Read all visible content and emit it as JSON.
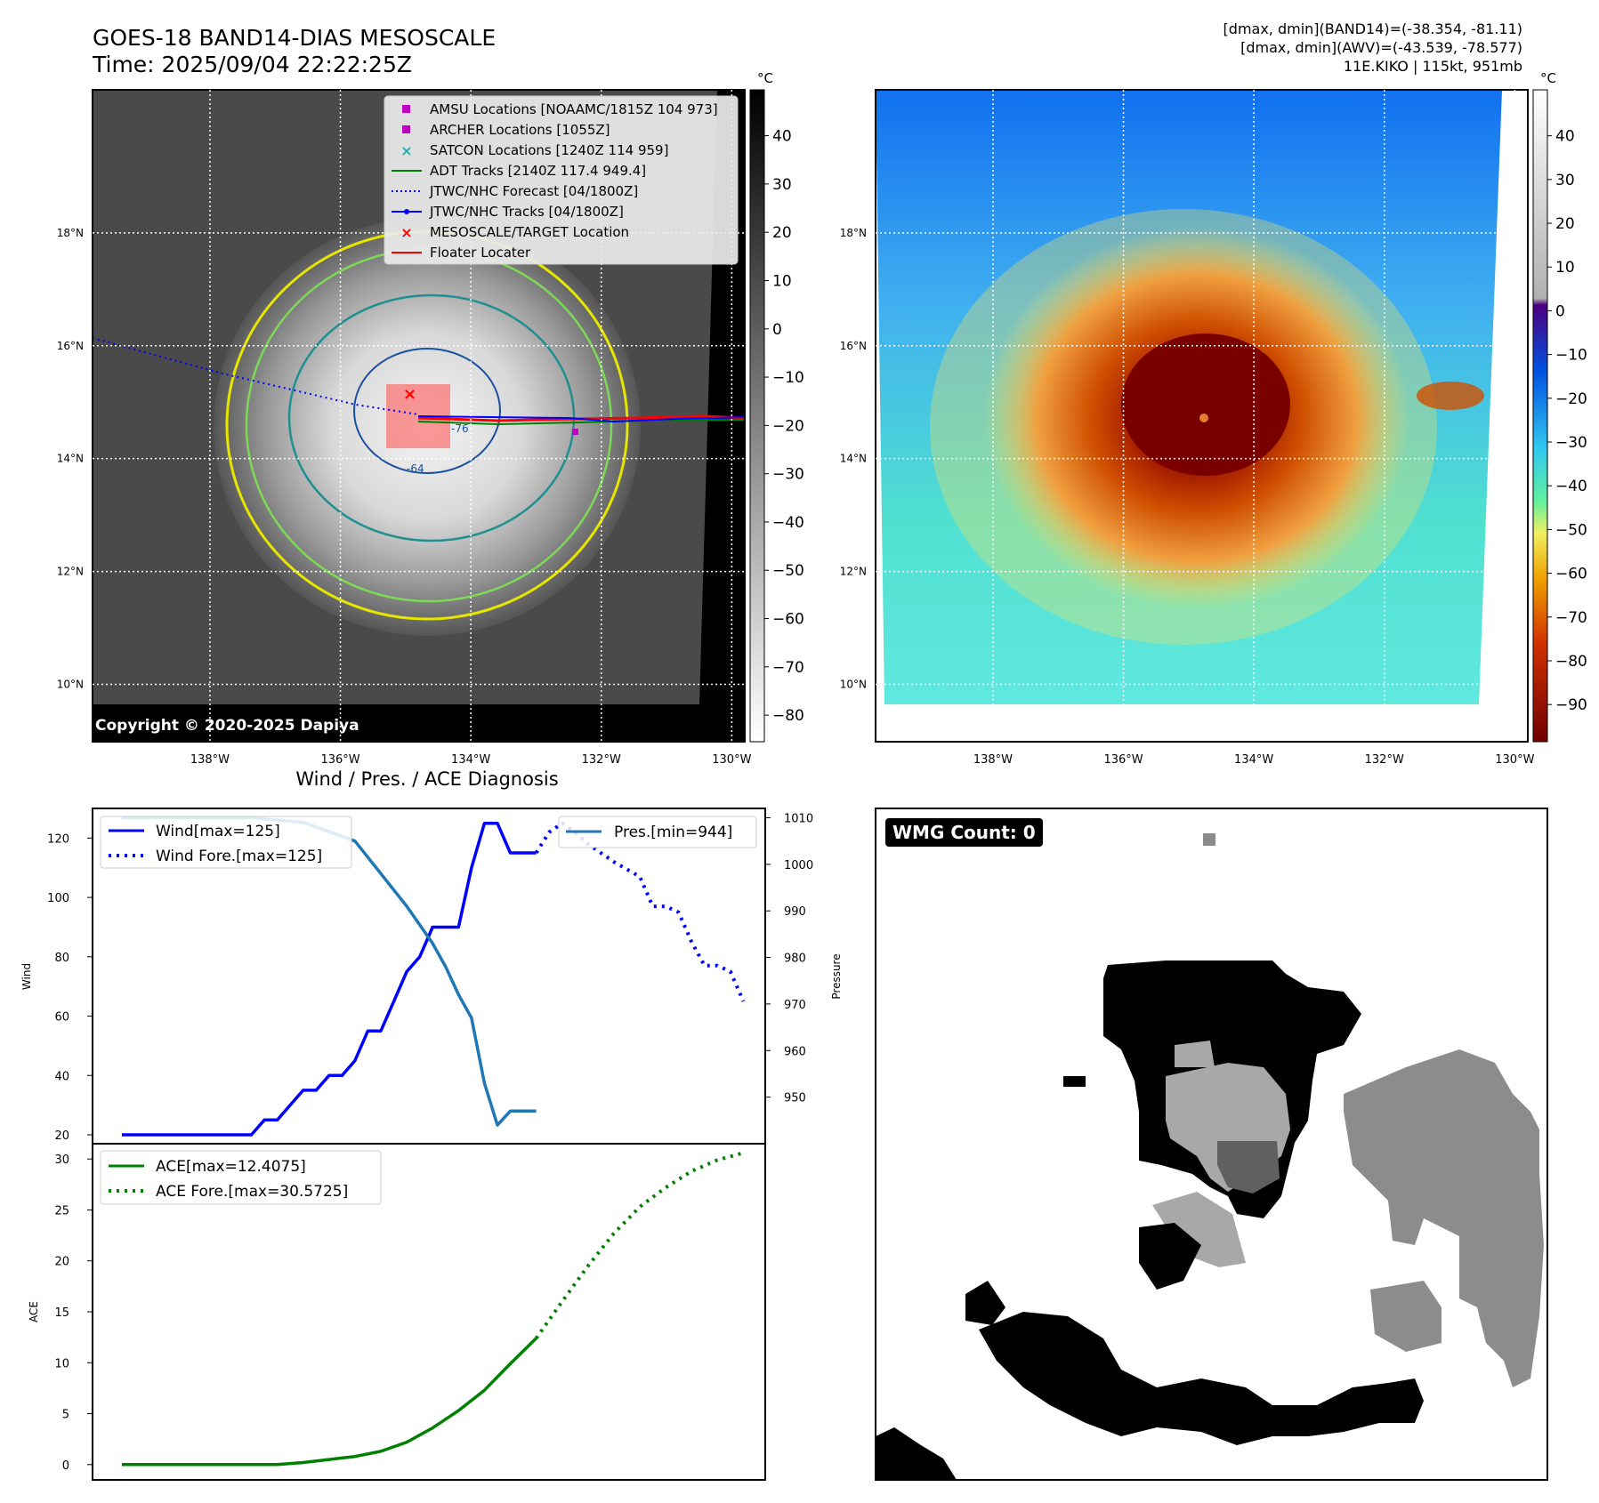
{
  "header": {
    "title": "GOES-18 BAND14-DIAS MESOSCALE",
    "time": "Time: 2025/09/04 22:22:25Z",
    "stats1": "[dmax, dmin](BAND14)=(-38.354, -81.11)",
    "stats2": "[dmax, dmin](AWV)=(-43.539, -78.577)",
    "storm": "11E.KIKO | 115kt, 951mb"
  },
  "map": {
    "lat_labels": [
      "18°N",
      "16°N",
      "14°N",
      "12°N",
      "10°N"
    ],
    "lat_values": [
      18,
      16,
      14,
      12,
      10
    ],
    "lon_labels": [
      "138°W",
      "136°W",
      "134°W",
      "132°W",
      "130°W"
    ],
    "lon_values": [
      -138,
      -136,
      -134,
      -132,
      -130
    ],
    "copyright": "Copyright © 2020-2025 Dapiya",
    "contour_labels": [
      "-64",
      "-76"
    ],
    "legend": [
      {
        "label": "AMSU Locations [NOAAMC/1815Z 104 973]",
        "marker": "square",
        "color": "#c000c0"
      },
      {
        "label": "ARCHER Locations [1055Z]",
        "marker": "square",
        "color": "#c000c0"
      },
      {
        "label": "SATCON Locations [1240Z 114 959]",
        "marker": "x",
        "color": "#20b0b0"
      },
      {
        "label": "ADT Tracks [2140Z 117.4 949.4]",
        "marker": "line",
        "color": "#008000"
      },
      {
        "label": "JTWC/NHC Forecast [04/1800Z]",
        "marker": "dotted",
        "color": "#0000ff"
      },
      {
        "label": "JTWC/NHC Tracks [04/1800Z]",
        "marker": "line-dot",
        "color": "#0000ff"
      },
      {
        "label": "MESOSCALE/TARGET Location",
        "marker": "x",
        "color": "#ff0000"
      },
      {
        "label": "Floater Locater",
        "marker": "line",
        "color": "#ff0000"
      }
    ]
  },
  "colorbar_gray": {
    "unit": "°C",
    "ticks": [
      "40",
      "30",
      "20",
      "10",
      "0",
      "−10",
      "−20",
      "−30",
      "−40",
      "−50",
      "−60",
      "−70",
      "−80"
    ],
    "tick_values": [
      40,
      30,
      20,
      10,
      0,
      -10,
      -20,
      -30,
      -40,
      -50,
      -60,
      -70,
      -80
    ]
  },
  "colorbar_color": {
    "unit": "°C",
    "ticks": [
      "40",
      "30",
      "20",
      "10",
      "0",
      "−10",
      "−20",
      "−30",
      "−40",
      "−50",
      "−60",
      "−70",
      "−80",
      "−90"
    ],
    "tick_values": [
      40,
      30,
      20,
      10,
      0,
      -10,
      -20,
      -30,
      -40,
      -50,
      -60,
      -70,
      -80,
      -90
    ]
  },
  "wmg": {
    "label": "WMG Count: 0"
  },
  "chart_data": [
    {
      "type": "line",
      "title": "Wind / Pres. / ACE Diagnosis",
      "ylabel": "Wind",
      "ylabel_right": "Pressure",
      "ylim": [
        17,
        130
      ],
      "ylim_right": [
        940,
        1012
      ],
      "yticks": [
        20,
        40,
        60,
        80,
        100,
        120
      ],
      "yticks_right": [
        950,
        960,
        970,
        980,
        990,
        1000,
        1010
      ],
      "legend": [
        "Wind[max=125]",
        "Wind Fore.[max=125]",
        "Pres.[min=944]"
      ],
      "series": [
        {
          "name": "Wind[max=125]",
          "style": "solid",
          "color": "#0000ff",
          "axis": "left",
          "x": [
            0,
            5,
            5.5,
            6,
            6.5,
            7,
            7.5,
            8,
            8.5,
            9,
            9.5,
            10,
            10.5,
            11,
            11.5,
            12,
            12.5,
            13,
            13.5,
            14,
            14.5,
            15,
            15.5,
            16
          ],
          "values": [
            20,
            20,
            25,
            25,
            30,
            35,
            35,
            40,
            40,
            45,
            55,
            55,
            65,
            75,
            80,
            90,
            90,
            90,
            110,
            125,
            125,
            115,
            115,
            115
          ]
        },
        {
          "name": "Wind Fore.[max=125]",
          "style": "dotted",
          "color": "#0000ff",
          "axis": "left",
          "x": [
            16,
            16.5,
            17,
            17.5,
            18,
            19,
            20,
            20.5,
            21,
            21.5,
            22,
            22.5,
            23,
            23.5,
            24
          ],
          "values": [
            115,
            122,
            125,
            122,
            118,
            112,
            107,
            97,
            97,
            95,
            85,
            77,
            77,
            75,
            65
          ]
        },
        {
          "name": "Pres.[min=944]",
          "style": "solid",
          "color": "#1f77b4",
          "axis": "right",
          "x": [
            0,
            5,
            7,
            8,
            9,
            10,
            11,
            12,
            12.5,
            13,
            13.5,
            14,
            14.5,
            15,
            16
          ],
          "values": [
            1010,
            1010,
            1009,
            1007,
            1005,
            998,
            991,
            983,
            978,
            972,
            967,
            953,
            944,
            947,
            947
          ]
        }
      ]
    },
    {
      "type": "line",
      "ylabel": "ACE",
      "ylim": [
        -1.5,
        31.5
      ],
      "yticks": [
        0,
        5,
        10,
        15,
        20,
        25,
        30
      ],
      "legend": [
        "ACE[max=12.4075]",
        "ACE Fore.[max=30.5725]"
      ],
      "series": [
        {
          "name": "ACE[max=12.4075]",
          "style": "solid",
          "color": "#008000",
          "x": [
            0,
            2,
            4,
            6,
            7,
            8,
            9,
            10,
            11,
            12,
            13,
            14,
            15,
            16
          ],
          "values": [
            0,
            0,
            0,
            0,
            0.2,
            0.5,
            0.8,
            1.3,
            2.2,
            3.6,
            5.3,
            7.3,
            9.9,
            12.4
          ]
        },
        {
          "name": "ACE Fore.[max=30.5725]",
          "style": "dotted",
          "color": "#008000",
          "x": [
            16,
            17,
            18,
            19,
            20,
            21,
            22,
            23,
            24
          ],
          "values": [
            12.4,
            16,
            19.5,
            22.7,
            25.3,
            27.2,
            28.8,
            29.9,
            30.6
          ]
        }
      ]
    }
  ]
}
